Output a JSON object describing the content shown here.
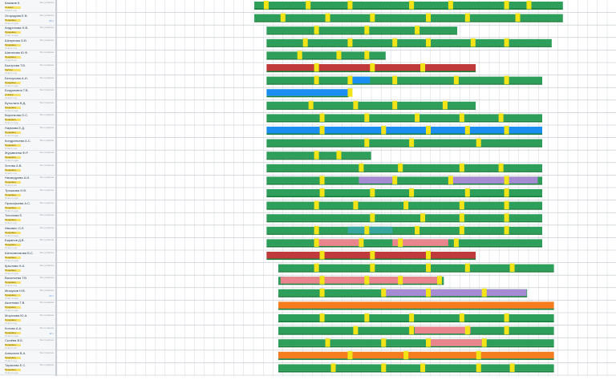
{
  "colors": {
    "green": "#2e9e5b",
    "green_dark": "#1a7d3c",
    "yellow": "#f2e416",
    "red": "#c0393b",
    "blue": "#1b8ef2",
    "pink": "#e9858d",
    "purple": "#a78bd2",
    "orange": "#f57d1f",
    "teal": "#3aa6a0",
    "grid_line": "#d6dadf",
    "grid_line_strong": "#bfc4ca",
    "bar_text": "#ffffff"
  },
  "status_label": "Без графика",
  "rows": [
    {
      "name": "Казаков К.",
      "role": "Стажёр",
      "meta": "Стаж 1 год",
      "count": ""
    },
    {
      "name": "Огородова Е.В.",
      "role": "Продавец",
      "meta": "Стаж 2 года",
      "count": "60 ч"
    },
    {
      "name": "Андронова Н.В.",
      "role": "Продавец",
      "meta": "Стаж 3 года",
      "count": ""
    },
    {
      "name": "Шепунова О.В.",
      "role": "Продавец",
      "meta": "Стаж 1 год",
      "count": ""
    },
    {
      "name": "Шатилова Ю.Ф.",
      "role": "Продавец",
      "meta": "Стаж 5 лет",
      "count": ""
    },
    {
      "name": "Быстрова Т.В.",
      "role": "Кассир",
      "meta": "Стаж 1 год",
      "count": ""
    },
    {
      "name": "Белоусова А.И.",
      "role": "Продавец",
      "meta": "Стаж 2 года",
      "count": ""
    },
    {
      "name": "Богдановна Т.В.",
      "role": "Стажёр",
      "meta": "Стаж 1 год",
      "count": ""
    },
    {
      "name": "Бутылкин В.Д.",
      "role": "Продавец",
      "meta": "Стаж 4 года",
      "count": ""
    },
    {
      "name": "Воронкова О.С.",
      "role": "Продавец",
      "meta": "Стаж 2 года",
      "count": ""
    },
    {
      "name": "Наумова Е.Д.",
      "role": "Продавец",
      "meta": "Стаж 3 года",
      "count": ""
    },
    {
      "name": "Кондратьева А.С.",
      "role": "Продавец",
      "meta": "Стаж 1 год",
      "count": ""
    },
    {
      "name": "Журавлева Ф.Р.",
      "role": "Продавец",
      "meta": "Стаж 2 года",
      "count": ""
    },
    {
      "name": "Зотова А.В.",
      "role": "Продавец",
      "meta": "Стаж 1 год",
      "count": ""
    },
    {
      "name": "Никандрова А.И.",
      "role": "Продавец",
      "meta": "Стаж 6 лет",
      "count": ""
    },
    {
      "name": "Трошкова Н.В.",
      "role": "Продавец",
      "meta": "Стаж 2 года",
      "count": ""
    },
    {
      "name": "Прокофьева А.С.",
      "role": "Продавец",
      "meta": "Стаж 3 года",
      "count": ""
    },
    {
      "name": "Тихонова Е.",
      "role": "Продавец",
      "meta": "Стаж 1 год",
      "count": ""
    },
    {
      "name": "Ивкович О.Л.",
      "role": "Продавец",
      "meta": "Стаж 2 года",
      "count": ""
    },
    {
      "name": "Баранов Д.В.",
      "role": "Продавец",
      "meta": "Стаж 1 год",
      "count": ""
    },
    {
      "name": "Шелковникова В.С.",
      "role": "Продавец",
      "meta": "Стаж 4 года",
      "count": ""
    },
    {
      "name": "Крылова Н.А.",
      "role": "Продавец",
      "meta": "Стаж 2 года",
      "count": ""
    },
    {
      "name": "Васильева Т.В.",
      "role": "Продавец",
      "meta": "Стаж 1 год",
      "count": ""
    },
    {
      "name": "Мишуков Н.В.",
      "role": "Продавец",
      "meta": "Стаж 3 года",
      "count": "44 ч"
    },
    {
      "name": "Аксенова Т.В.",
      "role": "Продавец",
      "meta": "Стаж 2 года",
      "count": ""
    },
    {
      "name": "Морозова Ю.А.",
      "role": "Продавец",
      "meta": "Стаж 1 год",
      "count": ""
    },
    {
      "name": "Котова А.А.",
      "role": "Продавец",
      "meta": "Стаж 2 года",
      "count": "32 ч"
    },
    {
      "name": "Сычёва В.Б.",
      "role": "Продавец",
      "meta": "Стаж 5 лет",
      "count": ""
    },
    {
      "name": "Алексеев В.А.",
      "role": "Продавец",
      "meta": "Стаж 1 год",
      "count": ""
    },
    {
      "name": "Тарасова Е.С.",
      "role": "Продавец",
      "meta": "Стаж 2 года",
      "count": ""
    }
  ],
  "schedule": [
    {
      "bars": [
        {
          "s": 0.353,
          "e": 0.905,
          "c": "green"
        }
      ],
      "marks": [
        0.37,
        0.445,
        0.52,
        0.63,
        0.7,
        0.8,
        0.84
      ]
    },
    {
      "bars": [
        {
          "s": 0.353,
          "e": 0.905,
          "c": "green"
        }
      ],
      "marks": [
        0.4,
        0.48,
        0.56,
        0.66,
        0.73,
        0.82
      ]
    },
    {
      "bars": [
        {
          "s": 0.375,
          "e": 0.716,
          "c": "green"
        }
      ],
      "marks": [
        0.46,
        0.55,
        0.64
      ]
    },
    {
      "bars": [
        {
          "s": 0.375,
          "e": 0.885,
          "c": "green"
        }
      ],
      "marks": [
        0.44,
        0.52,
        0.6,
        0.66,
        0.74,
        0.8
      ]
    },
    {
      "bars": [
        {
          "s": 0.375,
          "e": 0.588,
          "c": "green"
        }
      ],
      "marks": [
        0.43,
        0.5,
        0.55
      ]
    },
    {
      "bars": [
        {
          "s": 0.375,
          "e": 0.749,
          "c": "red"
        }
      ],
      "marks": [
        0.46,
        0.56,
        0.65
      ]
    },
    {
      "bars": [
        {
          "s": 0.375,
          "e": 0.868,
          "c": "green"
        },
        {
          "s": 0.522,
          "e": 0.56,
          "c": "blue"
        }
      ],
      "marks": [
        0.46,
        0.52,
        0.6,
        0.71,
        0.8
      ]
    },
    {
      "bars": [
        {
          "s": 0.375,
          "e": 0.522,
          "c": "blue"
        }
      ],
      "marks": [
        0.52
      ]
    },
    {
      "bars": [
        {
          "s": 0.375,
          "e": 0.749,
          "c": "green"
        }
      ],
      "marks": [
        0.45,
        0.53,
        0.6,
        0.69
      ]
    },
    {
      "bars": [
        {
          "s": 0.375,
          "e": 0.868,
          "c": "green"
        }
      ],
      "marks": [
        0.47,
        0.55,
        0.64,
        0.72,
        0.79
      ]
    },
    {
      "bars": [
        {
          "s": 0.375,
          "e": 0.868,
          "c": "blue"
        }
      ],
      "marks": [
        0.47,
        0.58,
        0.66,
        0.73,
        0.8
      ]
    },
    {
      "bars": [
        {
          "s": 0.375,
          "e": 0.868,
          "c": "green"
        }
      ],
      "marks": [
        0.55,
        0.63,
        0.75
      ]
    },
    {
      "bars": [
        {
          "s": 0.375,
          "e": 0.562,
          "c": "green"
        }
      ],
      "marks": [
        0.46,
        0.5
      ]
    },
    {
      "bars": [
        {
          "s": 0.375,
          "e": 0.868,
          "c": "green"
        }
      ],
      "marks": [
        0.54,
        0.61,
        0.72,
        0.79
      ]
    },
    {
      "bars": [
        {
          "s": 0.375,
          "e": 0.868,
          "c": "green"
        },
        {
          "s": 0.54,
          "e": 0.6,
          "c": "purple"
        },
        {
          "s": 0.7,
          "e": 0.86,
          "c": "purple"
        }
      ],
      "marks": [
        0.47,
        0.6,
        0.7,
        0.8
      ]
    },
    {
      "bars": [
        {
          "s": 0.375,
          "e": 0.868,
          "c": "green"
        }
      ],
      "marks": [
        0.47,
        0.56,
        0.63,
        0.73,
        0.8
      ]
    },
    {
      "bars": [
        {
          "s": 0.375,
          "e": 0.868,
          "c": "green"
        }
      ],
      "marks": [
        0.46,
        0.53,
        0.62,
        0.72,
        0.8
      ]
    },
    {
      "bars": [
        {
          "s": 0.375,
          "e": 0.868,
          "c": "green"
        }
      ],
      "marks": [
        0.56,
        0.65,
        0.72,
        0.8
      ]
    },
    {
      "bars": [
        {
          "s": 0.375,
          "e": 0.868,
          "c": "green"
        },
        {
          "s": 0.52,
          "e": 0.6,
          "c": "teal"
        }
      ],
      "marks": [
        0.46,
        0.55,
        0.64,
        0.72,
        0.8
      ]
    },
    {
      "bars": [
        {
          "s": 0.375,
          "e": 0.868,
          "c": "green"
        },
        {
          "s": 0.46,
          "e": 0.54,
          "c": "pink"
        },
        {
          "s": 0.6,
          "e": 0.7,
          "c": "pink"
        }
      ],
      "marks": [
        0.46,
        0.54,
        0.61,
        0.71
      ]
    },
    {
      "bars": [
        {
          "s": 0.375,
          "e": 0.749,
          "c": "red"
        }
      ],
      "marks": [
        0.47,
        0.56,
        0.66
      ]
    },
    {
      "bars": [
        {
          "s": 0.396,
          "e": 0.889,
          "c": "green"
        }
      ],
      "marks": [
        0.46,
        0.56,
        0.66,
        0.73,
        0.81
      ]
    },
    {
      "bars": [
        {
          "s": 0.396,
          "e": 0.692,
          "c": "green"
        },
        {
          "s": 0.4,
          "e": 0.68,
          "c": "pink"
        }
      ],
      "marks": [
        0.47,
        0.55,
        0.61,
        0.68
      ]
    },
    {
      "bars": [
        {
          "s": 0.396,
          "e": 0.841,
          "c": "green"
        },
        {
          "s": 0.58,
          "e": 0.84,
          "c": "purple"
        }
      ],
      "marks": [
        0.47,
        0.58,
        0.66,
        0.76
      ]
    },
    {
      "bars": [
        {
          "s": 0.396,
          "e": 0.889,
          "c": "orange"
        }
      ],
      "marks": []
    },
    {
      "bars": [
        {
          "s": 0.396,
          "e": 0.889,
          "c": "green"
        }
      ],
      "marks": [
        0.47,
        0.55,
        0.63,
        0.72,
        0.8
      ]
    },
    {
      "bars": [
        {
          "s": 0.396,
          "e": 0.889,
          "c": "green"
        },
        {
          "s": 0.64,
          "e": 0.74,
          "c": "pink"
        }
      ],
      "marks": [
        0.53,
        0.63,
        0.73,
        0.8
      ]
    },
    {
      "bars": [
        {
          "s": 0.396,
          "e": 0.889,
          "c": "green"
        },
        {
          "s": 0.66,
          "e": 0.76,
          "c": "pink"
        }
      ],
      "marks": [
        0.48,
        0.58,
        0.66,
        0.76
      ]
    },
    {
      "bars": [
        {
          "s": 0.396,
          "e": 0.889,
          "c": "orange"
        }
      ],
      "marks": [
        0.52,
        0.62,
        0.75
      ]
    },
    {
      "bars": [
        {
          "s": 0.396,
          "e": 0.889,
          "c": "green"
        }
      ],
      "marks": [
        0.49,
        0.58,
        0.65,
        0.75,
        0.81
      ]
    }
  ]
}
